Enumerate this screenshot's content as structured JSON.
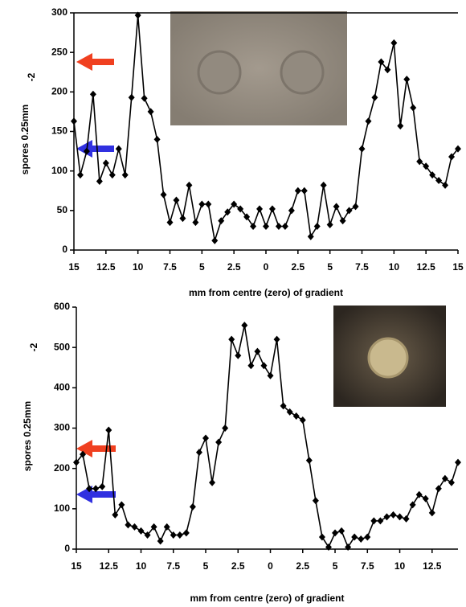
{
  "chart_data": [
    {
      "type": "line",
      "x": [
        -15,
        -14.5,
        -14,
        -13.5,
        -13,
        -12.5,
        -12,
        -11.5,
        -11,
        -10.5,
        -10,
        -9.5,
        -9,
        -8.5,
        -8,
        -7.5,
        -7,
        -6.5,
        -6,
        -5.5,
        -5,
        -4.5,
        -4,
        -3.5,
        -3,
        -2.5,
        -2,
        -1.5,
        -1,
        -0.5,
        0,
        0.5,
        1,
        1.5,
        2,
        2.5,
        3,
        3.5,
        4,
        4.5,
        5,
        5.5,
        6,
        6.5,
        7,
        7.5,
        8,
        8.5,
        9,
        9.5,
        10,
        10.5,
        11,
        11.5,
        12,
        12.5,
        13,
        13.5,
        14,
        14.5,
        15
      ],
      "values": [
        163,
        95,
        125,
        197,
        87,
        110,
        95,
        128,
        95,
        193,
        297,
        192,
        175,
        140,
        70,
        35,
        63,
        40,
        82,
        35,
        58,
        58,
        12,
        37,
        48,
        58,
        52,
        42,
        30,
        52,
        30,
        52,
        30,
        30,
        50,
        75,
        75,
        17,
        30,
        82,
        32,
        55,
        37,
        50,
        55,
        128,
        163,
        193,
        238,
        228,
        262,
        157,
        216,
        180,
        112,
        106,
        95,
        88,
        82,
        118,
        128
      ],
      "color": "#000000",
      "xlim": [
        -15,
        15
      ],
      "xticks": [
        {
          "value": -15,
          "label": "15"
        },
        {
          "value": -12.5,
          "label": "12.5"
        },
        {
          "value": -10,
          "label": "10"
        },
        {
          "value": -7.5,
          "label": "7.5"
        },
        {
          "value": -5,
          "label": "5"
        },
        {
          "value": -2.5,
          "label": "2.5"
        },
        0,
        2.5,
        5,
        7.5,
        10,
        12.5,
        15
      ],
      "ylim": [
        0,
        300
      ],
      "yticks": [
        0,
        50,
        100,
        150,
        200,
        250,
        300
      ],
      "x_label": "mm from centre (zero) of gradient",
      "y_label": "spores 0.25mm",
      "y_label_superscript": "-2"
    },
    {
      "type": "line",
      "x": [
        -15,
        -14.5,
        -14,
        -13.5,
        -13,
        -12.5,
        -12,
        -11.5,
        -11,
        -10.5,
        -10,
        -9.5,
        -9,
        -8.5,
        -8,
        -7.5,
        -7,
        -6.5,
        -6,
        -5.5,
        -5,
        -4.5,
        -4,
        -3.5,
        -3,
        -2.5,
        -2,
        -1.5,
        -1,
        -0.5,
        0,
        0.5,
        1,
        1.5,
        2,
        2.5,
        3,
        3.5,
        4,
        4.5,
        5,
        5.5,
        6,
        6.5,
        7,
        7.5,
        8,
        8.5,
        9,
        9.5,
        10,
        10.5,
        11,
        11.5,
        12,
        12.5,
        13,
        13.5,
        14,
        14.5
      ],
      "values": [
        215,
        235,
        150,
        150,
        155,
        295,
        85,
        110,
        60,
        55,
        45,
        35,
        55,
        20,
        55,
        35,
        35,
        40,
        105,
        240,
        275,
        165,
        265,
        300,
        520,
        480,
        555,
        455,
        490,
        455,
        430,
        520,
        355,
        340,
        330,
        320,
        220,
        120,
        30,
        5,
        40,
        45,
        5,
        30,
        25,
        30,
        70,
        70,
        80,
        85,
        80,
        75,
        110,
        135,
        125,
        90,
        150,
        175,
        165,
        215
      ],
      "color": "#000000",
      "xlim": [
        -15,
        14.5
      ],
      "xticks": [
        {
          "value": -15,
          "label": "15"
        },
        {
          "value": -12.5,
          "label": "12.5"
        },
        {
          "value": -10,
          "label": "10"
        },
        {
          "value": -7.5,
          "label": "7.5"
        },
        {
          "value": -5,
          "label": "5"
        },
        {
          "value": -2.5,
          "label": "2.5"
        },
        0,
        2.5,
        5,
        7.5,
        10,
        12.5
      ],
      "ylim": [
        0,
        600
      ],
      "yticks": [
        0,
        100,
        200,
        300,
        400,
        500,
        600
      ],
      "x_label": "mm from centre (zero) of gradient",
      "y_label": "spores 0.25mm",
      "y_label_superscript": "-2"
    }
  ]
}
